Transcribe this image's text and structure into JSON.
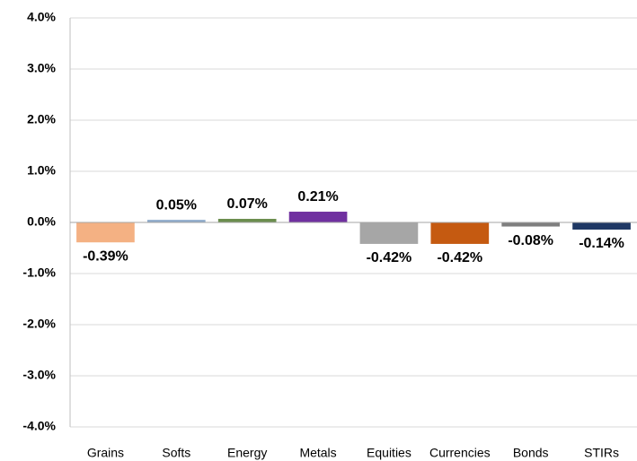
{
  "chart_data": {
    "type": "bar",
    "categories": [
      "Grains",
      "Softs",
      "Energy",
      "Metals",
      "Equities",
      "Currencies",
      "Bonds",
      "STIRs"
    ],
    "values": [
      -0.39,
      0.05,
      0.07,
      0.21,
      -0.42,
      -0.42,
      -0.08,
      -0.14
    ],
    "value_labels": [
      "-0.39%",
      "0.05%",
      "0.07%",
      "0.21%",
      "-0.42%",
      "-0.42%",
      "-0.08%",
      "-0.14%"
    ],
    "colors": [
      "#f4b183",
      "#8eaacb",
      "#6b8e4e",
      "#7030a0",
      "#a6a6a6",
      "#c55a11",
      "#7f7f7f",
      "#1f3864"
    ],
    "ylim": [
      -4,
      4
    ],
    "yticks": [
      {
        "value": -4,
        "label": "-4.0%"
      },
      {
        "value": -3,
        "label": "-3.0%"
      },
      {
        "value": -2,
        "label": "-2.0%"
      },
      {
        "value": -1,
        "label": "-1.0%"
      },
      {
        "value": 0,
        "label": "0.0%"
      },
      {
        "value": 1,
        "label": "1.0%"
      },
      {
        "value": 2,
        "label": "2.0%"
      },
      {
        "value": 3,
        "label": "3.0%"
      },
      {
        "value": 4,
        "label": "4.0%"
      }
    ],
    "grid": true
  }
}
